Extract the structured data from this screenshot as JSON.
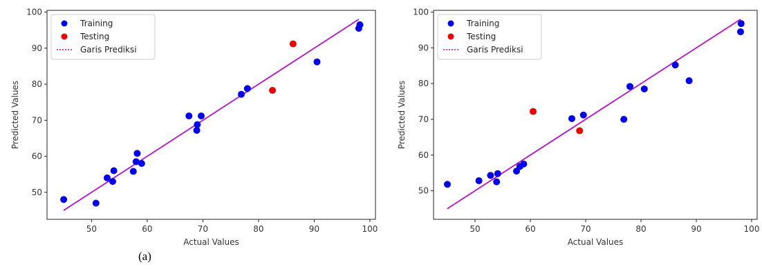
{
  "caption": "(a)",
  "chart_data": [
    {
      "type": "scatter",
      "title": "",
      "xlabel": "Actual Values",
      "ylabel": "Predicted Values",
      "xlim": [
        42,
        101
      ],
      "ylim": [
        42.5,
        100.5
      ],
      "xticks": [
        50,
        60,
        70,
        80,
        90,
        100
      ],
      "yticks": [
        50,
        60,
        70,
        80,
        90,
        100
      ],
      "grid": false,
      "legend_position": "top-left",
      "series": [
        {
          "name": "Training",
          "color": "#0000ee",
          "points": [
            [
              45,
              48
            ],
            [
              50.8,
              47
            ],
            [
              52.8,
              54
            ],
            [
              53.8,
              53
            ],
            [
              54,
              56
            ],
            [
              57.5,
              55.8
            ],
            [
              58,
              58.5
            ],
            [
              58.2,
              60.8
            ],
            [
              59,
              58
            ],
            [
              67.5,
              71.2
            ],
            [
              68.9,
              67.2
            ],
            [
              69,
              68.8
            ],
            [
              69.7,
              71.2
            ],
            [
              76.9,
              77.2
            ],
            [
              78,
              78.8
            ],
            [
              90.5,
              86.2
            ],
            [
              98,
              95.5
            ],
            [
              98.2,
              96.5
            ]
          ]
        },
        {
          "name": "Testing",
          "color": "#ee0000",
          "points": [
            [
              82.5,
              78.3
            ],
            [
              86.2,
              91.2
            ]
          ]
        },
        {
          "name": "Garis Prediksi",
          "color": "#cc00cc",
          "style": "dotted-line",
          "line": [
            [
              45,
              45
            ],
            [
              98,
              98
            ]
          ]
        }
      ],
      "regression_line": {
        "color": "#aa22cc",
        "points": [
          [
            45,
            45
          ],
          [
            98,
            98
          ]
        ]
      }
    },
    {
      "type": "scatter",
      "title": "",
      "xlabel": "Actual Values",
      "ylabel": "Predicted Values",
      "xlim": [
        42.5,
        101
      ],
      "ylim": [
        42,
        100.5
      ],
      "xticks": [
        50,
        60,
        70,
        80,
        90,
        100
      ],
      "yticks": [
        50,
        60,
        70,
        80,
        90,
        100
      ],
      "grid": false,
      "legend_position": "top-left",
      "series": [
        {
          "name": "Training",
          "color": "#0000ee",
          "points": [
            [
              45,
              51.8
            ],
            [
              50.7,
              52.8
            ],
            [
              52.8,
              54.3
            ],
            [
              53.9,
              52.5
            ],
            [
              54.1,
              54.8
            ],
            [
              57.5,
              55.5
            ],
            [
              58.1,
              56.8
            ],
            [
              58.8,
              57.5
            ],
            [
              67.5,
              70.2
            ],
            [
              69.6,
              71.2
            ],
            [
              76.9,
              70
            ],
            [
              78,
              79.2
            ],
            [
              80.6,
              78.5
            ],
            [
              86.2,
              85.2
            ],
            [
              88.7,
              80.8
            ],
            [
              98,
              94.5
            ],
            [
              98.1,
              96.8
            ]
          ]
        },
        {
          "name": "Testing",
          "color": "#ee0000",
          "points": [
            [
              60.5,
              72.2
            ],
            [
              68.9,
              66.8
            ]
          ]
        },
        {
          "name": "Garis Prediksi",
          "color": "#cc00cc",
          "style": "dotted-line",
          "line": [
            [
              45,
              45
            ],
            [
              98,
              98
            ]
          ]
        }
      ],
      "regression_line": {
        "color": "#aa22cc",
        "points": [
          [
            45,
            45
          ],
          [
            98,
            98
          ]
        ]
      }
    }
  ]
}
